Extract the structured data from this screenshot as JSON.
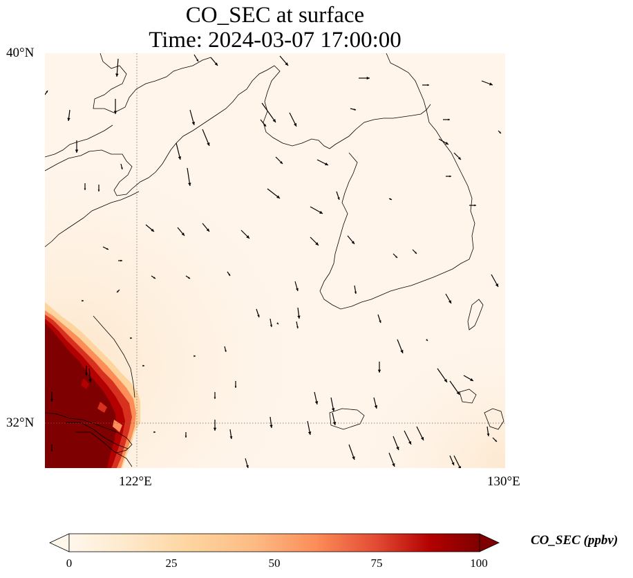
{
  "title": {
    "line1": "CO_SEC at surface",
    "line2": "Time: 2024-03-07 17:00:00"
  },
  "map": {
    "lon_range": [
      120,
      130
    ],
    "lat_range": [
      31,
      40
    ],
    "lat_labels": [
      "40°N",
      "32°N"
    ],
    "lon_labels": [
      "122°E",
      "130°E"
    ],
    "gridlines": {
      "lon": 122,
      "lat": 32,
      "style": "dotted"
    },
    "features": [
      "coastlines",
      "wind-vectors",
      "concentration-field"
    ],
    "colors": {
      "high": "#7f0000",
      "mid": "#d7301f",
      "low": "#fff5eb",
      "coast": "#000000"
    }
  },
  "colorbar": {
    "label": "CO_SEC (ppbv)",
    "cmap": "OrRd",
    "vmin": 0,
    "vmax": 100,
    "ticks": [
      "0",
      "25",
      "50",
      "75",
      "100"
    ],
    "extend": "both"
  }
}
